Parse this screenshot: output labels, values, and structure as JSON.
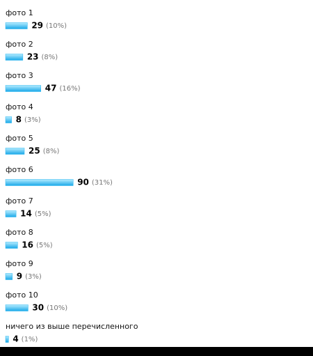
{
  "chart_data": {
    "type": "bar",
    "categories": [
      "фото 1",
      "фото 2",
      "фото 3",
      "фото 4",
      "фото 5",
      "фото 6",
      "фото 7",
      "фото 8",
      "фото 9",
      "фото 10",
      "ничего из выше перечисленного"
    ],
    "values": [
      29,
      23,
      47,
      8,
      25,
      90,
      14,
      16,
      9,
      30,
      4
    ],
    "percent_labels": [
      "(10%)",
      "(8%)",
      "(16%)",
      "(3%)",
      "(8%)",
      "(31%)",
      "(5%)",
      "(5%)",
      "(3%)",
      "(10%)",
      "(1%)"
    ],
    "color": "#29b6f0"
  }
}
